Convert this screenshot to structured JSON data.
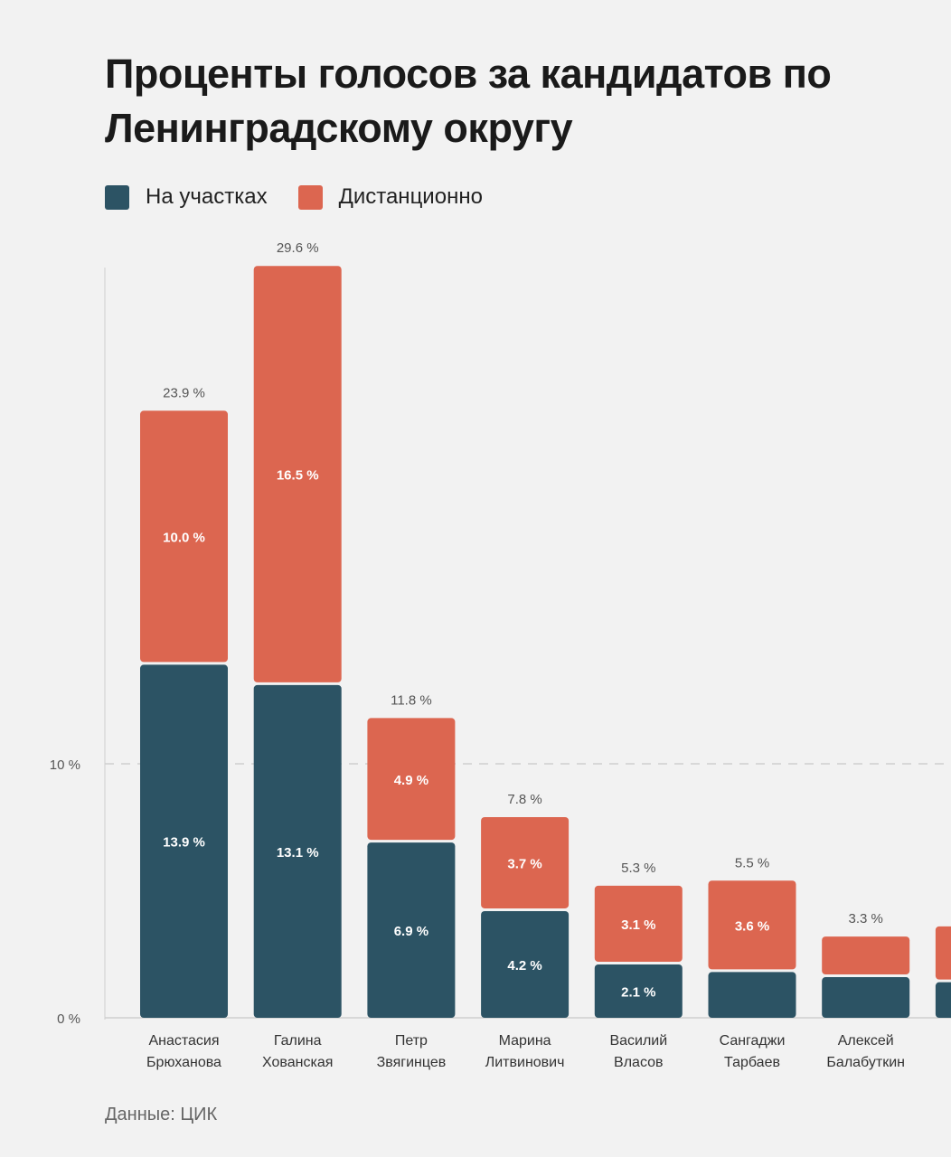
{
  "title": "Проценты голосов за кандидатов по Ленинградскому округу",
  "legend": {
    "items": [
      {
        "label": "На участках",
        "color": "#2c5364"
      },
      {
        "label": "Дистанционно",
        "color": "#dc6650"
      }
    ]
  },
  "source": "Данные: ЦИК",
  "chart_data": {
    "type": "bar",
    "stacked": true,
    "title": "Проценты голосов за кандидатов по Ленинградскому округу",
    "yticks": [
      "0 %",
      "10 %"
    ],
    "ylim": [
      0,
      30
    ],
    "grid": true,
    "legend_position": "top-left",
    "categories": [
      [
        "Анастасия",
        "Брюханова"
      ],
      [
        "Галина",
        "Хованская"
      ],
      [
        "Петр",
        "Звягинцев"
      ],
      [
        "Марина",
        "Литвинович"
      ],
      [
        "Василий",
        "Власов"
      ],
      [
        "Сангаджи",
        "Тарбаев"
      ],
      [
        "Алексей",
        "Балабуткин"
      ],
      [
        "",
        ""
      ]
    ],
    "totals": [
      23.9,
      29.6,
      11.8,
      7.8,
      5.3,
      5.5,
      3.3,
      null
    ],
    "total_labels": [
      "23.9 %",
      "29.6 %",
      "11.8 %",
      "7.8 %",
      "5.3 %",
      "5.5 %",
      "3.3 %",
      ""
    ],
    "series": [
      {
        "name": "На участках",
        "color": "#2c5364",
        "values": [
          13.9,
          13.1,
          6.9,
          4.2,
          2.1,
          1.8,
          1.6,
          1.4
        ],
        "labels": [
          "13.9 %",
          "13.1 %",
          "6.9 %",
          "4.2 %",
          "2.1 %",
          "",
          "",
          ""
        ]
      },
      {
        "name": "Дистанционно",
        "color": "#dc6650",
        "values": [
          10.0,
          16.5,
          4.9,
          3.7,
          3.1,
          3.6,
          1.6,
          2.2
        ],
        "labels": [
          "10.0 %",
          "16.5 %",
          "4.9 %",
          "3.7 %",
          "3.1 %",
          "3.6 %",
          "",
          ""
        ]
      }
    ]
  }
}
